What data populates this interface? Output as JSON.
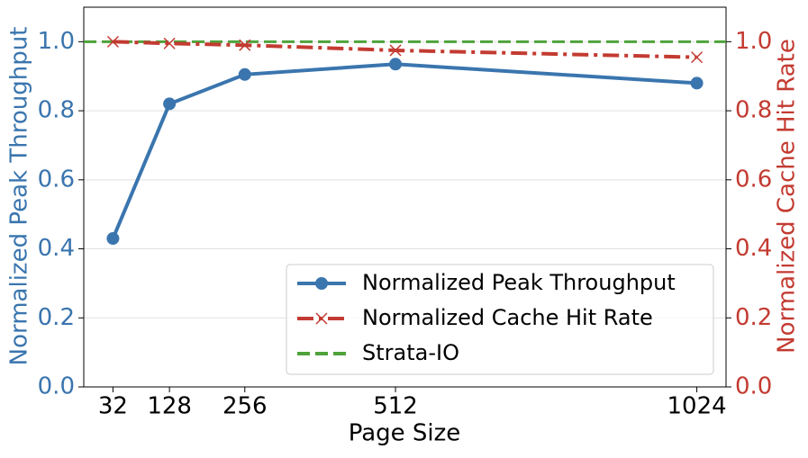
{
  "chart_data": {
    "type": "line",
    "x_label": "Page Size",
    "y_label": "Normalized Peak Throughput",
    "y2_label": "Normalized Cache Hit Rate",
    "x": [
      32,
      128,
      256,
      512,
      1024
    ],
    "xlim": [
      -17.6,
      1073.6
    ],
    "xticks": [
      32,
      128,
      256,
      512,
      1024
    ],
    "ylim": [
      0,
      1.1
    ],
    "yticks": [
      {
        "value": 0,
        "label": "0.0"
      },
      0.2,
      0.4,
      0.6,
      0.8,
      {
        "value": 1,
        "label": "1.0"
      }
    ],
    "y2lim": [
      0,
      1.1
    ],
    "y2ticks": [
      {
        "value": 0,
        "label": "0.0"
      },
      0.2,
      0.4,
      0.6,
      0.8,
      {
        "value": 1,
        "label": "1.0"
      }
    ],
    "grid": true,
    "legend": "lower right",
    "series": [
      {
        "name": "Normalized Peak Throughput",
        "color": "#3a75ae",
        "marker": "circle",
        "style": "solid",
        "values": [
          0.43,
          0.82,
          0.905,
          0.935,
          0.88
        ]
      },
      {
        "name": "Normalized Cache Hit Rate",
        "color": "#c33b31",
        "marker": "x",
        "style": "dashdot",
        "axis": "y2",
        "values": [
          1.0,
          0.995,
          0.99,
          0.975,
          0.955
        ]
      }
    ],
    "hline": {
      "name": "Strata-IO",
      "color": "#4fa33b",
      "style": "dashed",
      "value": 1.0
    }
  }
}
